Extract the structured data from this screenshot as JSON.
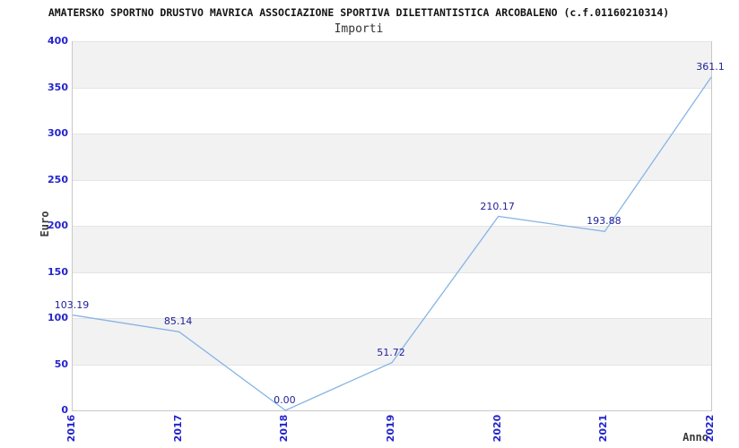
{
  "header": {
    "title": "AMATERSKO SPORTNO DRUSTVO MAVRICA ASSOCIAZIONE SPORTIVA DILETTANTISTICA ARCOBALENO (c.f.01160210314)",
    "subtitle": "Importi"
  },
  "chart_data": {
    "type": "line",
    "title": "AMATERSKO SPORTNO DRUSTVO MAVRICA ASSOCIAZIONE SPORTIVA DILETTANTISTICA ARCOBALENO (c.f.01160210314)",
    "subtitle": "Importi",
    "categories": [
      "2016",
      "2017",
      "2018",
      "2019",
      "2020",
      "2021",
      "2022"
    ],
    "values": [
      103.19,
      85.14,
      0.0,
      51.72,
      210.17,
      193.88,
      361.1
    ],
    "point_labels": [
      "103.19",
      "85.14",
      "0.00",
      "51.72",
      "210.17",
      "193.88",
      "361.1"
    ],
    "xlabel": "Anno",
    "ylabel": "Euro",
    "ylim": [
      0,
      400
    ],
    "ytick_step": 50,
    "yticks": [
      "0",
      "50",
      "100",
      "150",
      "200",
      "250",
      "300",
      "350",
      "400"
    ],
    "grid": "alternating-horizontal-bands",
    "legend": "none",
    "colors": {
      "line": "#85b5e6",
      "tick_label": "#2424cd",
      "point_label": "#21219b",
      "band_gray": "#f2f2f2",
      "band_white": "#ffffff",
      "gridline": "#e4e4e4",
      "axis_border": "#c8c8c8",
      "title": "#141414",
      "axis_title": "#3a3a3a"
    }
  }
}
